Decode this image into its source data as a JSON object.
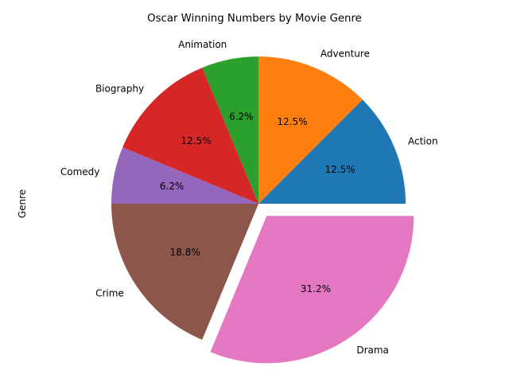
{
  "chart_data": {
    "type": "pie",
    "title": "Oscar Winning Numbers by Movie Genre",
    "ylabel": "Genre",
    "categories": [
      "Action",
      "Adventure",
      "Animation",
      "Biography",
      "Comedy",
      "Crime",
      "Drama"
    ],
    "values": [
      2,
      2,
      1,
      2,
      1,
      3,
      5
    ],
    "percent_labels": [
      "12.5%",
      "12.5%",
      "6.2%",
      "12.5%",
      "6.2%",
      "18.8%",
      "31.2%"
    ],
    "colors": [
      "#1f77b4",
      "#ff7f0e",
      "#2ca02c",
      "#d62728",
      "#9467bd",
      "#8c564b",
      "#e377c2"
    ],
    "exploded": [
      "Drama"
    ],
    "start_angle_deg": 0,
    "direction": "counterclockwise-from-bottom"
  }
}
